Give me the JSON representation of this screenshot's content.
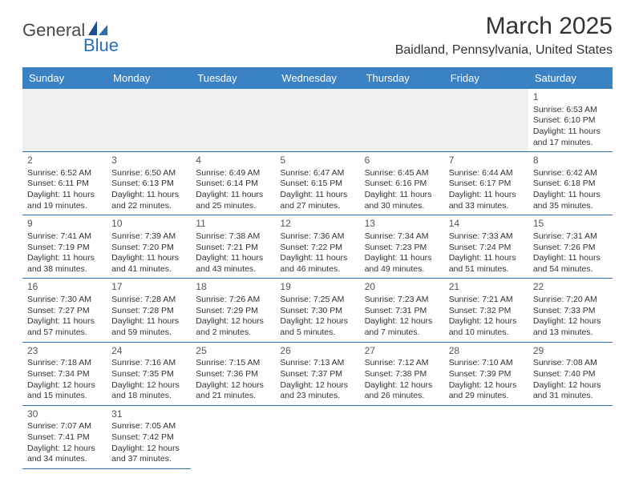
{
  "logo": {
    "main": "General",
    "accent": "Blue"
  },
  "title": "March 2025",
  "location": "Baidland, Pennsylvania, United States",
  "colors": {
    "header_bg": "#3b82c4",
    "header_text": "#ffffff",
    "rule": "#2a6fb5",
    "body_text": "#333333",
    "logo_gray": "#4a4a4a",
    "logo_blue": "#2a6fb5",
    "empty_bg": "#f0f0f0",
    "page_bg": "#ffffff"
  },
  "typography": {
    "title_fontsize": 30,
    "location_fontsize": 16,
    "header_fontsize": 13,
    "cell_fontsize": 10.5,
    "daynum_fontsize": 12
  },
  "dayHeaders": [
    "Sunday",
    "Monday",
    "Tuesday",
    "Wednesday",
    "Thursday",
    "Friday",
    "Saturday"
  ],
  "weeks": [
    [
      null,
      null,
      null,
      null,
      null,
      null,
      {
        "n": "1",
        "sr": "6:53 AM",
        "ss": "6:10 PM",
        "dl": "11 hours and 17 minutes."
      }
    ],
    [
      {
        "n": "2",
        "sr": "6:52 AM",
        "ss": "6:11 PM",
        "dl": "11 hours and 19 minutes."
      },
      {
        "n": "3",
        "sr": "6:50 AM",
        "ss": "6:13 PM",
        "dl": "11 hours and 22 minutes."
      },
      {
        "n": "4",
        "sr": "6:49 AM",
        "ss": "6:14 PM",
        "dl": "11 hours and 25 minutes."
      },
      {
        "n": "5",
        "sr": "6:47 AM",
        "ss": "6:15 PM",
        "dl": "11 hours and 27 minutes."
      },
      {
        "n": "6",
        "sr": "6:45 AM",
        "ss": "6:16 PM",
        "dl": "11 hours and 30 minutes."
      },
      {
        "n": "7",
        "sr": "6:44 AM",
        "ss": "6:17 PM",
        "dl": "11 hours and 33 minutes."
      },
      {
        "n": "8",
        "sr": "6:42 AM",
        "ss": "6:18 PM",
        "dl": "11 hours and 35 minutes."
      }
    ],
    [
      {
        "n": "9",
        "sr": "7:41 AM",
        "ss": "7:19 PM",
        "dl": "11 hours and 38 minutes."
      },
      {
        "n": "10",
        "sr": "7:39 AM",
        "ss": "7:20 PM",
        "dl": "11 hours and 41 minutes."
      },
      {
        "n": "11",
        "sr": "7:38 AM",
        "ss": "7:21 PM",
        "dl": "11 hours and 43 minutes."
      },
      {
        "n": "12",
        "sr": "7:36 AM",
        "ss": "7:22 PM",
        "dl": "11 hours and 46 minutes."
      },
      {
        "n": "13",
        "sr": "7:34 AM",
        "ss": "7:23 PM",
        "dl": "11 hours and 49 minutes."
      },
      {
        "n": "14",
        "sr": "7:33 AM",
        "ss": "7:24 PM",
        "dl": "11 hours and 51 minutes."
      },
      {
        "n": "15",
        "sr": "7:31 AM",
        "ss": "7:26 PM",
        "dl": "11 hours and 54 minutes."
      }
    ],
    [
      {
        "n": "16",
        "sr": "7:30 AM",
        "ss": "7:27 PM",
        "dl": "11 hours and 57 minutes."
      },
      {
        "n": "17",
        "sr": "7:28 AM",
        "ss": "7:28 PM",
        "dl": "11 hours and 59 minutes."
      },
      {
        "n": "18",
        "sr": "7:26 AM",
        "ss": "7:29 PM",
        "dl": "12 hours and 2 minutes."
      },
      {
        "n": "19",
        "sr": "7:25 AM",
        "ss": "7:30 PM",
        "dl": "12 hours and 5 minutes."
      },
      {
        "n": "20",
        "sr": "7:23 AM",
        "ss": "7:31 PM",
        "dl": "12 hours and 7 minutes."
      },
      {
        "n": "21",
        "sr": "7:21 AM",
        "ss": "7:32 PM",
        "dl": "12 hours and 10 minutes."
      },
      {
        "n": "22",
        "sr": "7:20 AM",
        "ss": "7:33 PM",
        "dl": "12 hours and 13 minutes."
      }
    ],
    [
      {
        "n": "23",
        "sr": "7:18 AM",
        "ss": "7:34 PM",
        "dl": "12 hours and 15 minutes."
      },
      {
        "n": "24",
        "sr": "7:16 AM",
        "ss": "7:35 PM",
        "dl": "12 hours and 18 minutes."
      },
      {
        "n": "25",
        "sr": "7:15 AM",
        "ss": "7:36 PM",
        "dl": "12 hours and 21 minutes."
      },
      {
        "n": "26",
        "sr": "7:13 AM",
        "ss": "7:37 PM",
        "dl": "12 hours and 23 minutes."
      },
      {
        "n": "27",
        "sr": "7:12 AM",
        "ss": "7:38 PM",
        "dl": "12 hours and 26 minutes."
      },
      {
        "n": "28",
        "sr": "7:10 AM",
        "ss": "7:39 PM",
        "dl": "12 hours and 29 minutes."
      },
      {
        "n": "29",
        "sr": "7:08 AM",
        "ss": "7:40 PM",
        "dl": "12 hours and 31 minutes."
      }
    ],
    [
      {
        "n": "30",
        "sr": "7:07 AM",
        "ss": "7:41 PM",
        "dl": "12 hours and 34 minutes."
      },
      {
        "n": "31",
        "sr": "7:05 AM",
        "ss": "7:42 PM",
        "dl": "12 hours and 37 minutes."
      },
      null,
      null,
      null,
      null,
      null
    ]
  ],
  "labels": {
    "sunrise": "Sunrise: ",
    "sunset": "Sunset: ",
    "daylight": "Daylight: "
  }
}
